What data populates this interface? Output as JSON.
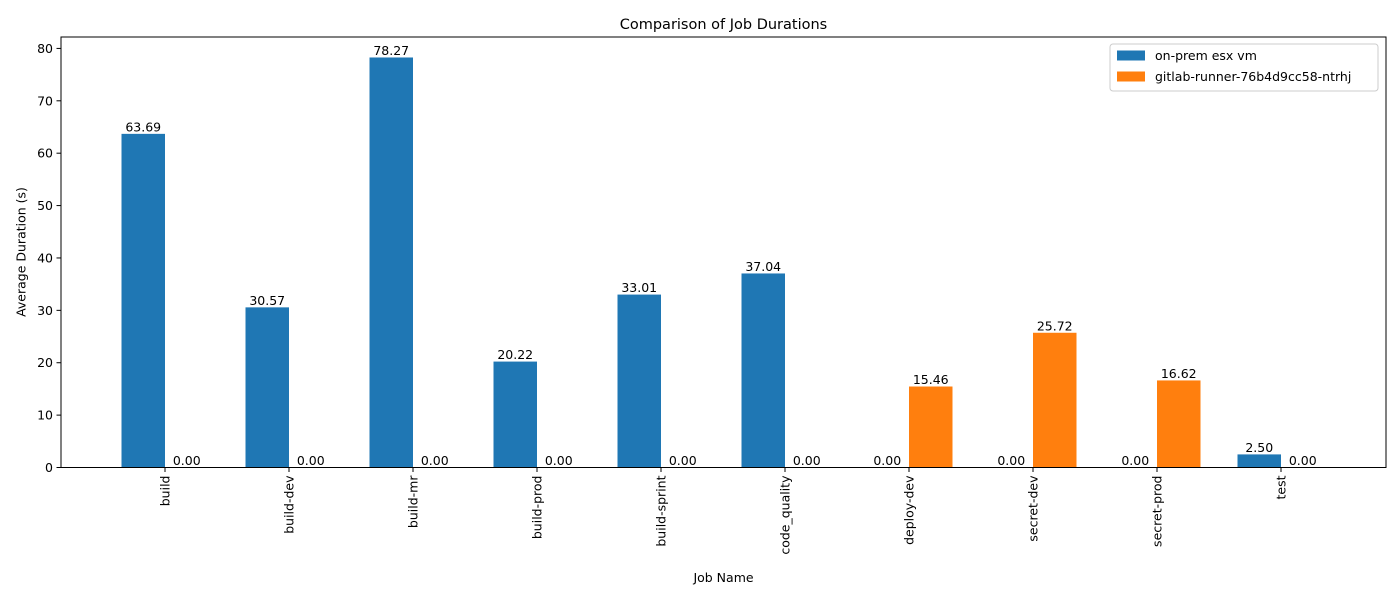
{
  "chart_data": {
    "type": "bar",
    "title": "Comparison of Job Durations",
    "xlabel": "Job Name",
    "ylabel": "Average Duration (s)",
    "ylim": [
      0,
      82.18
    ],
    "yticks": [
      0,
      10,
      20,
      30,
      40,
      50,
      60,
      70,
      80
    ],
    "grid": false,
    "legend_position": "top-right",
    "categories": [
      "build",
      "build-dev",
      "build-mr",
      "build-prod",
      "build-sprint",
      "code_quality",
      "deploy-dev",
      "secret-dev",
      "secret-prod",
      "test"
    ],
    "series": [
      {
        "name": "on-prem esx vm",
        "color": "#1f77b4",
        "values": [
          63.69,
          30.57,
          78.27,
          20.22,
          33.01,
          37.04,
          0.0,
          0.0,
          0.0,
          2.5
        ]
      },
      {
        "name": "gitlab-runner-76b4d9cc58-ntrhj",
        "color": "#ff7f0e",
        "values": [
          0.0,
          0.0,
          0.0,
          0.0,
          0.0,
          0.0,
          15.46,
          25.72,
          16.62,
          0.0
        ]
      }
    ]
  }
}
